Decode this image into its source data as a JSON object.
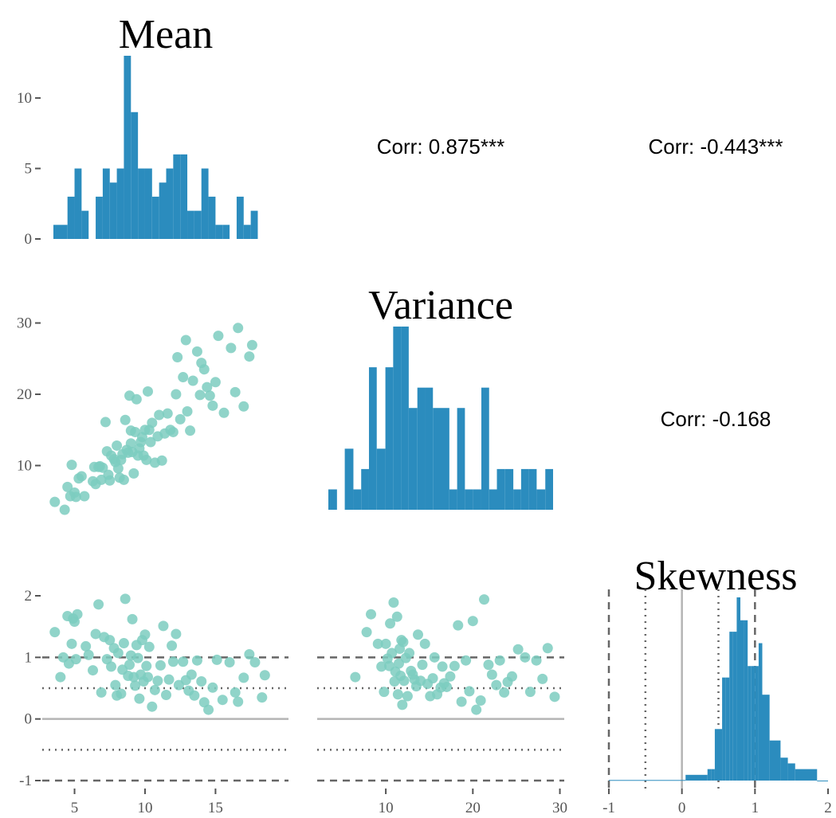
{
  "colors": {
    "bar": "#2b8cbe",
    "point": "#7ccdbf",
    "ref_zero": "#b5b5b5",
    "ref_line": "#666666",
    "tick": "#555555"
  },
  "titles": {
    "mean": "Mean",
    "variance": "Variance",
    "skewness": "Skewness"
  },
  "corr": {
    "mean_variance": "Corr: 0.875***",
    "mean_skewness": "Corr: -0.443***",
    "variance_skewness": "Corr: -0.168"
  },
  "chart_data": [
    {
      "type": "bar",
      "panel": "mean-histogram",
      "title": "Mean",
      "x": [
        3.5,
        4.5,
        5.0,
        5.5,
        6.0,
        6.5,
        7.0,
        7.5,
        8.0,
        8.5,
        9.0,
        9.5,
        10.0,
        10.5,
        11.0,
        11.5,
        12.0,
        12.5,
        13.0,
        13.5,
        14.0,
        14.5,
        15.0,
        15.5,
        16.0,
        16.5,
        17.0,
        17.5
      ],
      "values": [
        1,
        3,
        5,
        2,
        0,
        3,
        5,
        4,
        5,
        13,
        9,
        5,
        5,
        3,
        4,
        5,
        6,
        6,
        2,
        2,
        5,
        3,
        1,
        1,
        0,
        3,
        1,
        2
      ],
      "bin_edges": [
        3.5,
        4.5,
        5.0,
        5.5,
        6.0,
        6.5,
        7.0,
        7.5,
        8.0,
        8.5,
        9.0,
        9.5,
        10.0,
        10.5,
        11.0,
        11.5,
        12.0,
        12.5,
        13.0,
        13.5,
        14.0,
        14.5,
        15.0,
        15.5,
        16.0,
        16.5,
        17.0,
        17.5,
        18.0
      ],
      "xlim": [
        3.5,
        19.5
      ],
      "ylim": [
        0,
        13
      ],
      "y_ticks": [
        0,
        5,
        10
      ]
    },
    {
      "type": "bar",
      "panel": "variance-histogram",
      "title": "Variance",
      "bin_edges": [
        3.4,
        4.4,
        5.3,
        6.3,
        7.2,
        8.1,
        9.0,
        10.0,
        10.9,
        11.8,
        12.7,
        13.7,
        14.6,
        15.5,
        16.4,
        17.4,
        18.3,
        19.2,
        20.1,
        21.1,
        22.0,
        22.9,
        23.8,
        24.8,
        25.7,
        26.6,
        27.5,
        28.5,
        29.4
      ],
      "values": [
        1,
        0,
        3,
        1,
        2,
        7,
        3,
        7,
        9,
        9,
        5,
        6,
        6,
        5,
        5,
        1,
        5,
        1,
        1,
        6,
        1,
        2,
        2,
        1,
        2,
        2,
        1,
        2
      ],
      "xlim": [
        3.4,
        29.4
      ]
    },
    {
      "type": "bar",
      "panel": "skewness-histogram",
      "title": "Skewness",
      "bin_edges": [
        -1.0,
        0.05,
        0.35,
        0.4,
        0.45,
        0.5,
        0.55,
        0.6,
        0.65,
        0.7,
        0.75,
        0.8,
        0.85,
        0.9,
        0.95,
        1.0,
        1.05,
        1.1,
        1.2,
        1.35,
        1.45,
        1.55,
        1.85,
        2.0
      ],
      "values": [
        0.05,
        0.5,
        1.0,
        1.0,
        4.5,
        4.5,
        9.0,
        9.0,
        13.0,
        13.0,
        16.0,
        14.0,
        14.0,
        10.0,
        10.0,
        10.0,
        12.0,
        7.5,
        3.5,
        2.0,
        1.5,
        1.0,
        0
      ],
      "xlim": [
        -1,
        2
      ],
      "x_ticks": [
        -1,
        0,
        1,
        2
      ],
      "reference_lines": {
        "solid": [
          0
        ],
        "dotted": [
          -0.5,
          0.5
        ],
        "dashed": [
          -1,
          1
        ]
      }
    },
    {
      "type": "scatter",
      "panel": "mean-vs-variance",
      "xlim": [
        3.5,
        19.5
      ],
      "ylim": [
        3.8,
        29.5
      ],
      "y_ticks": [
        10,
        20,
        30
      ],
      "x": [
        3.6,
        4.3,
        4.5,
        4.7,
        4.8,
        5.0,
        5.1,
        5.3,
        5.5,
        5.7,
        6.3,
        6.4,
        6.5,
        6.7,
        6.8,
        6.9,
        7.0,
        7.2,
        7.3,
        7.4,
        7.5,
        7.6,
        7.8,
        7.9,
        8.0,
        8.1,
        8.2,
        8.3,
        8.4,
        8.5,
        8.6,
        8.7,
        8.8,
        8.9,
        9.0,
        9.0,
        9.1,
        9.2,
        9.3,
        9.4,
        9.5,
        9.6,
        9.7,
        9.8,
        9.9,
        10.0,
        10.1,
        10.2,
        10.3,
        10.4,
        10.5,
        10.7,
        10.9,
        11.0,
        11.2,
        11.4,
        11.6,
        11.8,
        12.0,
        12.2,
        12.3,
        12.5,
        12.7,
        12.9,
        13.0,
        13.2,
        13.4,
        13.7,
        13.9,
        14.0,
        14.2,
        14.4,
        14.6,
        14.8,
        15.0,
        15.2,
        15.6,
        16.1,
        16.4,
        16.6,
        17.0,
        17.4,
        17.6
      ],
      "y": [
        4.9,
        3.8,
        7.0,
        5.7,
        10.1,
        6.2,
        5.6,
        8.2,
        8.5,
        5.7,
        7.8,
        9.8,
        7.4,
        9.8,
        9.9,
        8.0,
        9.7,
        16.1,
        12.0,
        8.7,
        7.9,
        11.4,
        10.9,
        10.5,
        12.8,
        9.6,
        8.3,
        10.8,
        11.6,
        8.0,
        16.4,
        12.2,
        11.8,
        19.8,
        13.1,
        14.9,
        11.9,
        8.9,
        14.7,
        19.3,
        11.4,
        12.4,
        13.3,
        14.0,
        11.4,
        15.0,
        10.8,
        20.4,
        15.0,
        13.3,
        16.0,
        10.4,
        14.1,
        17.1,
        10.7,
        14.5,
        17.3,
        15.0,
        14.7,
        20.0,
        25.2,
        16.5,
        22.4,
        27.6,
        17.6,
        14.9,
        21.9,
        26.0,
        19.9,
        24.4,
        23.5,
        21.0,
        19.8,
        18.4,
        21.7,
        28.2,
        17.4,
        26.5,
        20.3,
        29.3,
        18.3,
        25.3,
        26.9
      ]
    },
    {
      "type": "scatter",
      "panel": "mean-vs-skewness",
      "xlim": [
        3.5,
        19.5
      ],
      "ylim": [
        -1.0,
        2.0
      ],
      "x_ticks": [
        5,
        10,
        15
      ],
      "y_ticks": [
        -1,
        0,
        1,
        2
      ],
      "x": [
        3.6,
        4.0,
        4.2,
        4.5,
        4.6,
        4.8,
        4.9,
        5.0,
        5.1,
        5.2,
        5.8,
        6.0,
        6.3,
        6.5,
        6.7,
        6.9,
        7.1,
        7.3,
        7.5,
        7.6,
        7.8,
        7.9,
        8.0,
        8.1,
        8.3,
        8.4,
        8.5,
        8.6,
        8.8,
        8.9,
        9.0,
        9.1,
        9.2,
        9.3,
        9.4,
        9.5,
        9.6,
        9.7,
        9.8,
        9.9,
        10.0,
        10.1,
        10.2,
        10.3,
        10.5,
        10.7,
        10.9,
        11.1,
        11.3,
        11.5,
        11.7,
        11.9,
        12.0,
        12.2,
        12.4,
        12.7,
        12.9,
        13.1,
        13.3,
        13.5,
        13.7,
        14.0,
        14.2,
        14.5,
        14.8,
        15.1,
        15.5,
        16.0,
        16.4,
        16.6,
        17.0,
        17.4,
        17.8,
        18.3,
        18.5
      ],
      "y": [
        1.41,
        0.68,
        1.0,
        1.67,
        0.9,
        1.22,
        1.63,
        1.58,
        0.97,
        1.7,
        1.18,
        1.04,
        0.79,
        1.38,
        1.86,
        0.43,
        1.33,
        0.97,
        1.28,
        0.85,
        1.15,
        0.55,
        0.38,
        1.07,
        0.41,
        0.8,
        1.23,
        1.95,
        0.7,
        0.88,
        1.03,
        1.62,
        0.68,
        0.54,
        1.2,
        0.99,
        0.33,
        0.72,
        1.28,
        0.61,
        1.37,
        0.86,
        0.68,
        1.17,
        0.2,
        0.47,
        0.62,
        0.87,
        1.51,
        0.39,
        0.64,
        1.19,
        0.93,
        1.38,
        0.55,
        0.93,
        0.63,
        0.46,
        0.72,
        0.38,
        0.95,
        0.61,
        0.27,
        0.15,
        0.51,
        0.96,
        0.31,
        0.92,
        0.43,
        0.28,
        0.67,
        1.05,
        0.92,
        0.35,
        0.71
      ]
    },
    {
      "type": "scatter",
      "panel": "variance-vs-skewness",
      "xlim": [
        3.4,
        30.5
      ],
      "ylim": [
        -1.0,
        2.0
      ],
      "x_ticks": [
        10,
        20,
        30
      ],
      "x": [
        6.5,
        7.8,
        8.3,
        9.1,
        9.5,
        9.8,
        10.0,
        10.2,
        10.4,
        10.5,
        10.7,
        10.9,
        11.0,
        11.1,
        11.3,
        11.4,
        11.5,
        11.6,
        11.7,
        11.8,
        11.9,
        12.0,
        12.1,
        12.3,
        12.5,
        12.7,
        12.9,
        13.1,
        13.3,
        13.5,
        13.7,
        14.0,
        14.2,
        14.5,
        14.8,
        15.1,
        15.4,
        15.6,
        15.9,
        16.3,
        16.5,
        16.7,
        17.0,
        17.4,
        17.9,
        18.3,
        18.7,
        19.2,
        19.6,
        20.0,
        20.4,
        20.9,
        21.3,
        21.8,
        22.2,
        22.7,
        23.1,
        23.6,
        24.0,
        24.5,
        25.2,
        26.0,
        26.6,
        27.3,
        28.0,
        28.6,
        29.4
      ],
      "y": [
        0.68,
        1.41,
        1.7,
        1.22,
        0.85,
        0.44,
        1.22,
        0.98,
        0.86,
        1.55,
        1.07,
        1.89,
        0.61,
        0.77,
        1.66,
        0.4,
        0.9,
        1.14,
        0.7,
        1.28,
        0.23,
        1.25,
        0.62,
        0.99,
        0.37,
        1.07,
        0.78,
        0.72,
        0.64,
        0.53,
        1.37,
        0.62,
        0.88,
        1.22,
        0.57,
        0.37,
        0.66,
        1.0,
        0.4,
        0.51,
        0.85,
        0.58,
        0.52,
        0.69,
        0.86,
        1.52,
        0.28,
        0.95,
        0.45,
        1.59,
        0.15,
        0.3,
        1.94,
        0.88,
        0.72,
        0.55,
        0.95,
        0.43,
        0.6,
        0.69,
        1.13,
        1.0,
        0.44,
        0.95,
        0.65,
        1.15,
        0.36
      ],
      "y_ticks": []
    }
  ]
}
